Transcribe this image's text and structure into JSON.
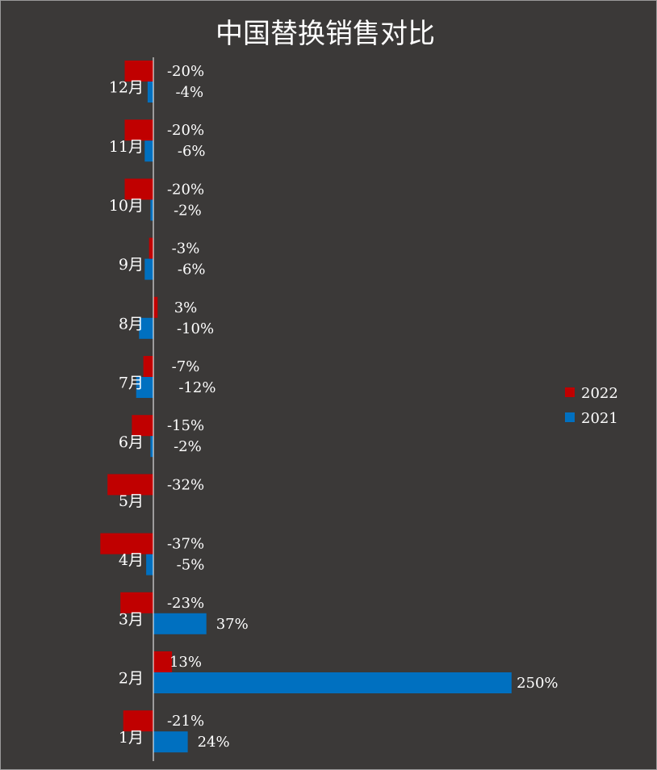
{
  "chart_data": {
    "type": "bar",
    "orientation": "horizontal",
    "title": "中国替换销售对比",
    "categories": [
      "1月",
      "2月",
      "3月",
      "4月",
      "5月",
      "6月",
      "7月",
      "8月",
      "9月",
      "10月",
      "11月",
      "12月"
    ],
    "series": [
      {
        "name": "2022",
        "color": "#c00000",
        "values": [
          -21,
          13,
          -23,
          -37,
          -32,
          -15,
          -7,
          3,
          -3,
          -20,
          -20,
          -20
        ],
        "labels": [
          "-21%",
          "13%",
          "-23%",
          "-37%",
          "-32%",
          "-15%",
          "-7%",
          "3%",
          "-3%",
          "-20%",
          "-20%",
          "-20%"
        ]
      },
      {
        "name": "2021",
        "color": "#0070c0",
        "values": [
          24,
          250,
          37,
          -5,
          null,
          -2,
          -12,
          -10,
          -6,
          -2,
          -6,
          -4
        ],
        "labels": [
          "24%",
          "250%",
          "37%",
          "-5%",
          "",
          "-2%",
          "-12%",
          "-10%",
          "-6%",
          "-2%",
          "-6%",
          "-4%"
        ]
      }
    ],
    "value_unit": "%",
    "axis_color": "#ffffff",
    "background": "#3b3938",
    "legend_position": "right",
    "grid": false,
    "xlabel": "",
    "ylabel": ""
  }
}
